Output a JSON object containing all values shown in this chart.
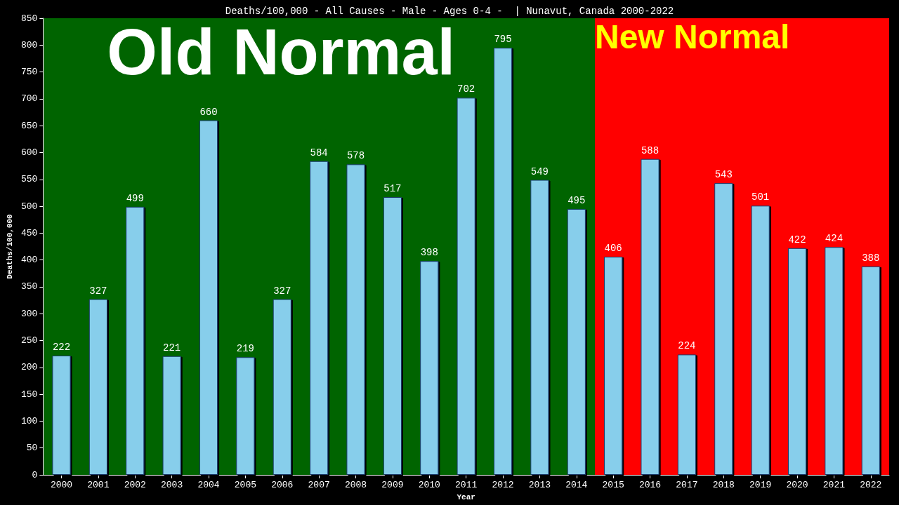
{
  "chart_data": {
    "type": "bar",
    "title": "Deaths/100,000 - All Causes - Male - Ages 0-4 -  | Nunavut, Canada 2000-2022",
    "xlabel": "Year",
    "ylabel": "Deaths/100,000",
    "categories": [
      "2000",
      "2001",
      "2002",
      "2003",
      "2004",
      "2005",
      "2006",
      "2007",
      "2008",
      "2009",
      "2010",
      "2011",
      "2012",
      "2013",
      "2014",
      "2015",
      "2016",
      "2017",
      "2018",
      "2019",
      "2020",
      "2021",
      "2022"
    ],
    "values": [
      222,
      327,
      499,
      221,
      660,
      219,
      327,
      584,
      578,
      517,
      398,
      702,
      795,
      549,
      495,
      406,
      588,
      224,
      543,
      501,
      422,
      424,
      388
    ],
    "color": "#87ceeb",
    "ylim": [
      0,
      850
    ],
    "yticks": [
      0,
      50,
      100,
      150,
      200,
      250,
      300,
      350,
      400,
      450,
      500,
      550,
      600,
      650,
      700,
      750,
      800,
      850
    ],
    "grid": false,
    "data_labels": true,
    "bands": [
      {
        "axis": "x",
        "from": "2000",
        "to": "2014",
        "label": "Old Normal",
        "color": "#006400"
      },
      {
        "axis": "x",
        "from": "2015",
        "to": "2022",
        "label": "New Normal",
        "color": "#ff0000"
      }
    ]
  }
}
